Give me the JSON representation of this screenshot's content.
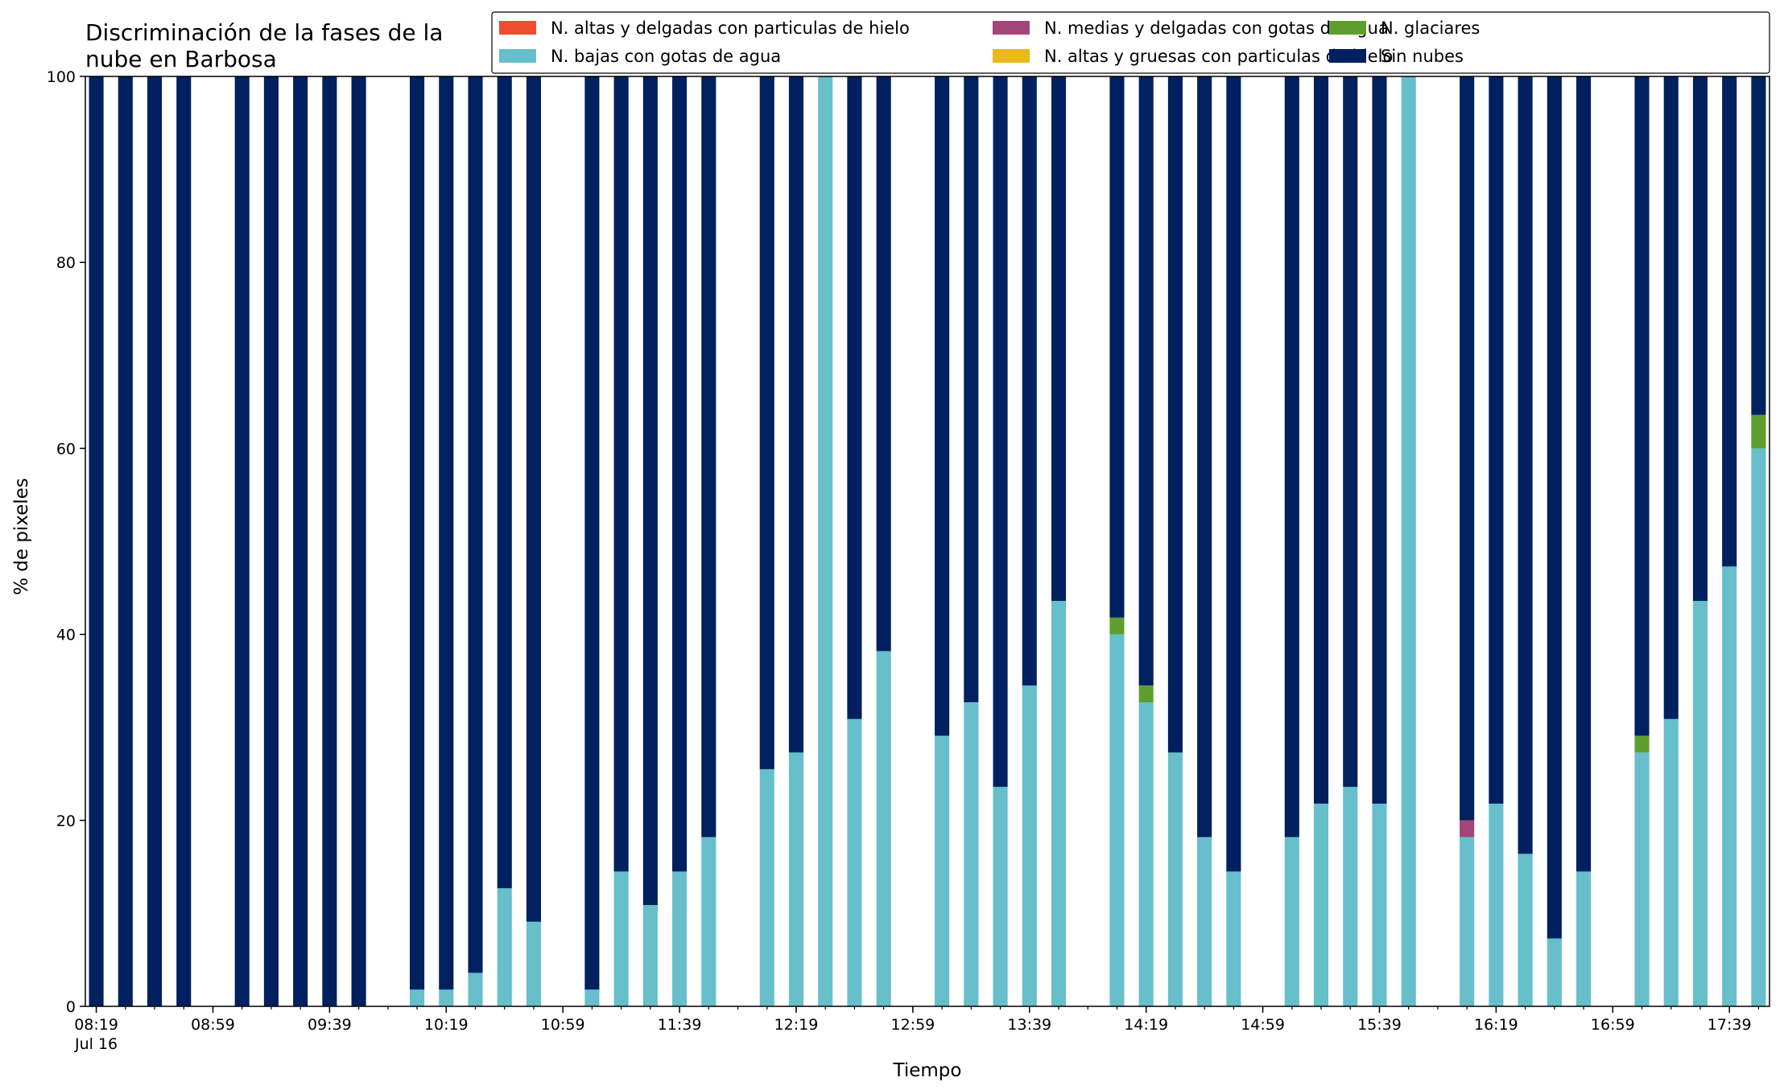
{
  "chart_data": {
    "type": "bar",
    "stacked": true,
    "title_lines": [
      "Discriminación de la fases de la",
      "nube en Barbosa"
    ],
    "xlabel": "Tiempo",
    "ylabel": "% de pixeles",
    "ylim": [
      0,
      100
    ],
    "yticks": [
      0,
      20,
      40,
      60,
      80,
      100
    ],
    "grid": false,
    "legend_placement": "top-right",
    "x_start": "2023-07-16 08:19",
    "x_end": "2023-07-16 17:49",
    "x_minor_ticks": [
      "08:19",
      "08:29",
      "08:39",
      "08:49",
      "08:59",
      "09:09",
      "09:19",
      "09:29",
      "09:39",
      "09:49",
      "09:59",
      "10:09",
      "10:19",
      "10:29",
      "10:39",
      "10:49",
      "10:59",
      "11:09",
      "11:19",
      "11:29",
      "11:39",
      "11:49",
      "11:59",
      "12:09",
      "12:19",
      "12:29",
      "12:39",
      "12:49",
      "12:59",
      "13:09",
      "13:19",
      "13:29",
      "13:39",
      "13:49",
      "13:59",
      "14:09",
      "14:19",
      "14:29",
      "14:39",
      "14:49",
      "14:59",
      "15:09",
      "15:19",
      "15:29",
      "15:39",
      "15:49",
      "15:59",
      "16:09",
      "16:19",
      "16:29",
      "16:39",
      "16:49",
      "16:59",
      "17:09",
      "17:19",
      "17:29",
      "17:39",
      "17:49"
    ],
    "x_major_ticks": [
      {
        "time": "08:19",
        "label": "08:19",
        "sublabel": "Jul 16"
      },
      {
        "time": "08:59",
        "label": "08:59"
      },
      {
        "time": "09:39",
        "label": "09:39"
      },
      {
        "time": "10:19",
        "label": "10:19"
      },
      {
        "time": "10:59",
        "label": "10:59"
      },
      {
        "time": "11:39",
        "label": "11:39"
      },
      {
        "time": "12:19",
        "label": "12:19"
      },
      {
        "time": "12:59",
        "label": "12:59"
      },
      {
        "time": "13:39",
        "label": "13:39"
      },
      {
        "time": "14:19",
        "label": "14:19"
      },
      {
        "time": "14:59",
        "label": "14:59"
      },
      {
        "time": "15:39",
        "label": "15:39"
      },
      {
        "time": "16:19",
        "label": "16:19"
      },
      {
        "time": "16:59",
        "label": "16:59"
      },
      {
        "time": "17:39",
        "label": "17:39"
      }
    ],
    "bar_width_minutes": 5,
    "categories": [
      "08:19",
      "08:29",
      "08:39",
      "08:49",
      "09:09",
      "09:19",
      "09:29",
      "09:39",
      "09:49",
      "10:09",
      "10:19",
      "10:29",
      "10:39",
      "10:49",
      "11:09",
      "11:19",
      "11:29",
      "11:39",
      "11:49",
      "12:09",
      "12:19",
      "12:29",
      "12:39",
      "12:49",
      "13:09",
      "13:19",
      "13:29",
      "13:39",
      "13:49",
      "14:09",
      "14:19",
      "14:29",
      "14:39",
      "14:49",
      "15:09",
      "15:19",
      "15:29",
      "15:39",
      "15:49",
      "16:09",
      "16:19",
      "16:29",
      "16:39",
      "16:49",
      "17:09",
      "17:19",
      "17:29",
      "17:39",
      "17:49"
    ],
    "series": [
      {
        "name": "N. altas y delgadas con particulas de hielo",
        "color": "#ee4d2e",
        "values": [
          0,
          0,
          0,
          0,
          0,
          0,
          0,
          0,
          0,
          0,
          0,
          0,
          0,
          0,
          0,
          0,
          0,
          0,
          0,
          0,
          0,
          0,
          0,
          0,
          0,
          0,
          0,
          0,
          0,
          0,
          0,
          0,
          0,
          0,
          0,
          0,
          0,
          0,
          0,
          0,
          0,
          0,
          0,
          0,
          0,
          0,
          0,
          0,
          0
        ]
      },
      {
        "name": "N. altas y gruesas con particulas de hielo",
        "color": "#e8b81c",
        "values": [
          0,
          0,
          0,
          0,
          0,
          0,
          0,
          0,
          0,
          0,
          0,
          0,
          0,
          0,
          0,
          0,
          0,
          0,
          0,
          0,
          0,
          0,
          0,
          0,
          0,
          0,
          0,
          0,
          0,
          0,
          0,
          0,
          0,
          0,
          0,
          0,
          0,
          0,
          0,
          0,
          0,
          0,
          0,
          0,
          0,
          0,
          0,
          0,
          0
        ]
      },
      {
        "name": "N. bajas con gotas de agua",
        "color": "#66bfca",
        "values": [
          0,
          0,
          0,
          0,
          0,
          0,
          0,
          0,
          0,
          1.8,
          1.8,
          3.6,
          12.7,
          9.1,
          1.8,
          14.5,
          10.9,
          14.5,
          18.2,
          25.5,
          27.3,
          100,
          30.9,
          38.2,
          29.1,
          32.7,
          23.6,
          34.5,
          43.6,
          40,
          32.7,
          27.3,
          18.2,
          14.5,
          18.2,
          21.8,
          23.6,
          21.8,
          100,
          18.2,
          21.8,
          16.4,
          7.3,
          14.5,
          27.3,
          30.9,
          43.6,
          47.3,
          60
        ]
      },
      {
        "name": "N. glaciares",
        "color": "#5e9e2e",
        "values": [
          0,
          0,
          0,
          0,
          0,
          0,
          0,
          0,
          0,
          0,
          0,
          0,
          0,
          0,
          0,
          0,
          0,
          0,
          0,
          0,
          0,
          0,
          0,
          0,
          0,
          0,
          0,
          0,
          0,
          1.8,
          1.8,
          0,
          0,
          0,
          0,
          0,
          0,
          0,
          0,
          0,
          0,
          0,
          0,
          0,
          1.8,
          0,
          0,
          0,
          3.6
        ]
      },
      {
        "name": "N. medias y delgadas con gotas de agua",
        "color": "#a3457a",
        "values": [
          0,
          0,
          0,
          0,
          0,
          0,
          0,
          0,
          0,
          0,
          0,
          0,
          0,
          0,
          0,
          0,
          0,
          0,
          0,
          0,
          0,
          0,
          0,
          0,
          0,
          0,
          0,
          0,
          0,
          0,
          0,
          0,
          0,
          0,
          0,
          0,
          0,
          0,
          0,
          1.8,
          0,
          0,
          0,
          0,
          0,
          0,
          0,
          0,
          0
        ]
      },
      {
        "name": "Sin nubes",
        "color": "#002060",
        "values": [
          100,
          100,
          100,
          100,
          100,
          100,
          100,
          100,
          100,
          98.2,
          98.2,
          96.4,
          87.3,
          90.9,
          98.2,
          85.5,
          89.1,
          85.5,
          81.8,
          74.5,
          72.7,
          0,
          69.1,
          61.8,
          70.9,
          67.3,
          76.4,
          65.5,
          56.4,
          58.2,
          65.5,
          72.7,
          81.8,
          85.5,
          81.8,
          78.2,
          76.4,
          78.2,
          0,
          80,
          78.2,
          83.6,
          92.7,
          85.5,
          70.9,
          69.1,
          56.4,
          52.7,
          36.4
        ]
      }
    ],
    "legend_order": [
      0,
      2,
      4,
      1,
      3,
      5
    ]
  }
}
